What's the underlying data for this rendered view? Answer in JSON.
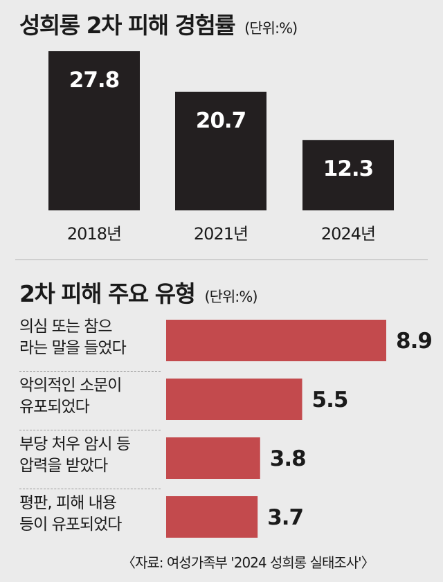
{
  "chart_data": [
    {
      "type": "bar",
      "title": "성희롱 2차 피해 경험률",
      "unit_label": "(단위:%)",
      "categories": [
        "2018년",
        "2021년",
        "2024년"
      ],
      "values": [
        27.8,
        20.7,
        12.3
      ],
      "value_labels": [
        "27.8",
        "20.7",
        "12.3"
      ],
      "bar_color": "#231f20",
      "label_color": "#ffffff",
      "ylim": [
        0,
        27.8
      ]
    },
    {
      "type": "bar",
      "orientation": "horizontal",
      "title": "2차 피해 주요 유형",
      "unit_label": "(단위:%)",
      "categories": [
        [
          "의심 또는 참으",
          "라는 말을 들었다"
        ],
        [
          "악의적인 소문이",
          "유포되었다"
        ],
        [
          "부당 처우 암시 등",
          "압력을 받았다"
        ],
        [
          "평판, 피해 내용",
          "등이 유포되었다"
        ]
      ],
      "values": [
        8.9,
        5.5,
        3.8,
        3.7
      ],
      "value_labels": [
        "8.9",
        "5.5",
        "3.8",
        "3.7"
      ],
      "bar_color": "#c34a4d",
      "xlim": [
        0,
        8.9
      ]
    }
  ],
  "source": "〈자료: 여성가족부 '2024 성희롱 실태조사'〉"
}
